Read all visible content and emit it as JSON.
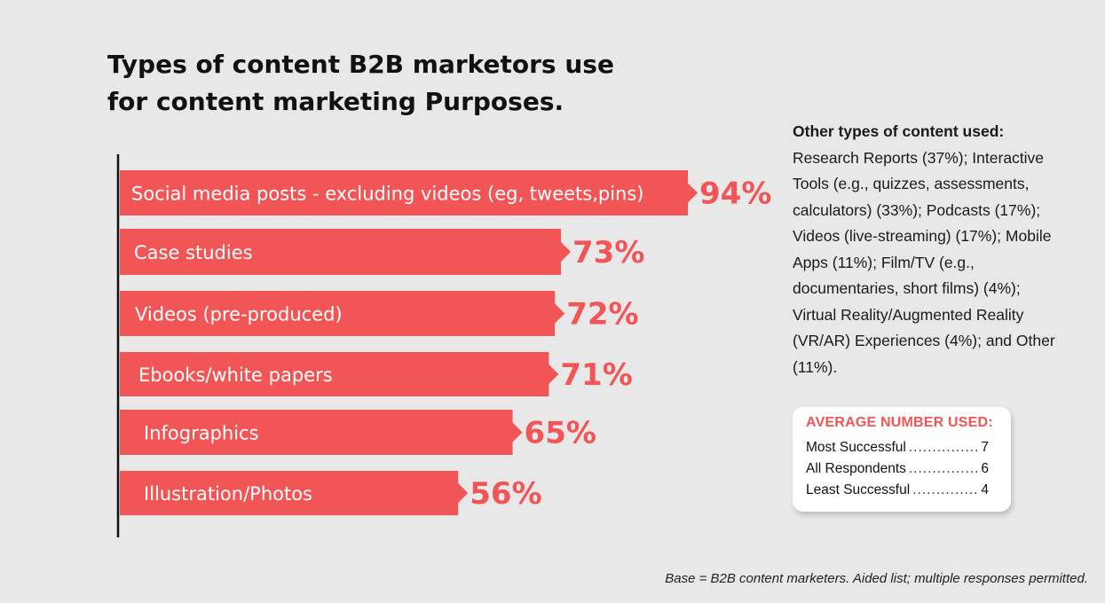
{
  "title_line1": "Types of content B2B marketors use",
  "title_line2": "for content marketing Purposes.",
  "chart_data": {
    "type": "bar",
    "orientation": "horizontal",
    "categories": [
      "Social media posts - excluding videos (eg, tweets,pins)",
      "Case studies",
      "Videos (pre-produced)",
      "Ebooks/white papers",
      "Infographics",
      "Illustration/Photos"
    ],
    "values": [
      94,
      73,
      72,
      71,
      65,
      56
    ],
    "value_labels": [
      "94%",
      "73%",
      "72%",
      "71%",
      "65%",
      "56%"
    ],
    "bar_color": "#f25556",
    "xlim": [
      0,
      100
    ]
  },
  "other": {
    "heading": "Other types of content used:",
    "body": "Research Reports (37%); Interactive Tools (e.g., quizzes, assessments, calculators) (33%); Podcasts (17%); Videos (live-streaming) (17%); Mobile Apps (11%); Film/TV (e.g., documentaries, short films) (4%); Virtual Reality/Augmented Reality (VR/AR) Experiences (4%); and Other (11%)."
  },
  "average": {
    "title": "AVERAGE NUMBER USED:",
    "rows": [
      {
        "label": "Most Successful",
        "value": "7"
      },
      {
        "label": "All Respondents",
        "value": "6"
      },
      {
        "label": "Least Successful",
        "value": "4"
      }
    ]
  },
  "footnote": "Base = B2B content marketers. Aided list; multiple responses permitted.",
  "accent_color": "#f25556"
}
